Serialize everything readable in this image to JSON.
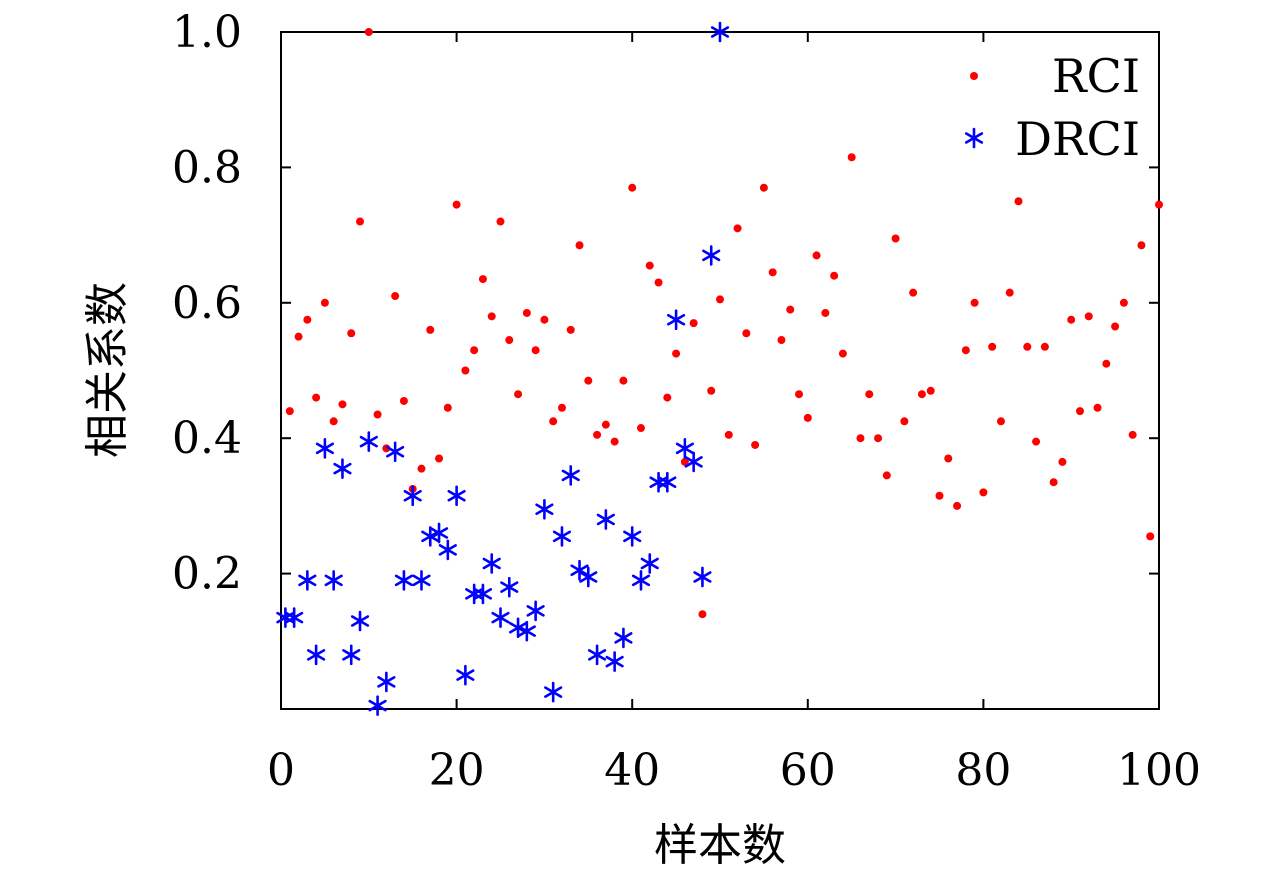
{
  "chart_data": {
    "type": "scatter",
    "xlabel": "样本数",
    "ylabel": "相关系数",
    "xlim": [
      0,
      100
    ],
    "ylim": [
      0,
      1.0
    ],
    "x_tick_labels": [
      "0",
      "20",
      "40",
      "60",
      "80",
      "100"
    ],
    "y_tick_labels": [
      "0.2",
      "0.4",
      "0.6",
      "0.8",
      "1.0"
    ],
    "grid": false,
    "legend_position": "top-right",
    "series": [
      {
        "name": "RCI",
        "marker": "dot",
        "color": "#ff0000",
        "points": [
          [
            1,
            0.44
          ],
          [
            2,
            0.55
          ],
          [
            3,
            0.575
          ],
          [
            4,
            0.46
          ],
          [
            5,
            0.6
          ],
          [
            6,
            0.425
          ],
          [
            7,
            0.45
          ],
          [
            8,
            0.555
          ],
          [
            9,
            0.72
          ],
          [
            10,
            1.0
          ],
          [
            11,
            0.435
          ],
          [
            12,
            0.385
          ],
          [
            13,
            0.61
          ],
          [
            14,
            0.455
          ],
          [
            15,
            0.325
          ],
          [
            16,
            0.355
          ],
          [
            17,
            0.56
          ],
          [
            18,
            0.37
          ],
          [
            19,
            0.445
          ],
          [
            20,
            0.745
          ],
          [
            21,
            0.5
          ],
          [
            22,
            0.53
          ],
          [
            23,
            0.635
          ],
          [
            24,
            0.58
          ],
          [
            25,
            0.72
          ],
          [
            26,
            0.545
          ],
          [
            27,
            0.465
          ],
          [
            28,
            0.585
          ],
          [
            29,
            0.53
          ],
          [
            30,
            0.575
          ],
          [
            31,
            0.425
          ],
          [
            32,
            0.445
          ],
          [
            33,
            0.56
          ],
          [
            34,
            0.685
          ],
          [
            35,
            0.485
          ],
          [
            36,
            0.405
          ],
          [
            37,
            0.42
          ],
          [
            38,
            0.395
          ],
          [
            39,
            0.485
          ],
          [
            40,
            0.77
          ],
          [
            41,
            0.415
          ],
          [
            42,
            0.655
          ],
          [
            43,
            0.63
          ],
          [
            44,
            0.46
          ],
          [
            45,
            0.525
          ],
          [
            46,
            0.365
          ],
          [
            47,
            0.57
          ],
          [
            48,
            0.14
          ],
          [
            49,
            0.47
          ],
          [
            50,
            0.605
          ],
          [
            51,
            0.405
          ],
          [
            52,
            0.71
          ],
          [
            53,
            0.555
          ],
          [
            54,
            0.39
          ],
          [
            55,
            0.77
          ],
          [
            56,
            0.645
          ],
          [
            57,
            0.545
          ],
          [
            58,
            0.59
          ],
          [
            59,
            0.465
          ],
          [
            60,
            0.43
          ],
          [
            61,
            0.67
          ],
          [
            62,
            0.585
          ],
          [
            63,
            0.64
          ],
          [
            64,
            0.525
          ],
          [
            65,
            0.815
          ],
          [
            66,
            0.4
          ],
          [
            67,
            0.465
          ],
          [
            68,
            0.4
          ],
          [
            69,
            0.345
          ],
          [
            70,
            0.695
          ],
          [
            71,
            0.425
          ],
          [
            72,
            0.615
          ],
          [
            73,
            0.465
          ],
          [
            74,
            0.47
          ],
          [
            75,
            0.315
          ],
          [
            76,
            0.37
          ],
          [
            77,
            0.3
          ],
          [
            78,
            0.53
          ],
          [
            79,
            0.6
          ],
          [
            80,
            0.32
          ],
          [
            81,
            0.535
          ],
          [
            82,
            0.425
          ],
          [
            83,
            0.615
          ],
          [
            84,
            0.75
          ],
          [
            85,
            0.535
          ],
          [
            86,
            0.395
          ],
          [
            87,
            0.535
          ],
          [
            88,
            0.335
          ],
          [
            89,
            0.365
          ],
          [
            90,
            0.575
          ],
          [
            91,
            0.44
          ],
          [
            92,
            0.58
          ],
          [
            93,
            0.445
          ],
          [
            94,
            0.51
          ],
          [
            95,
            0.565
          ],
          [
            96,
            0.6
          ],
          [
            97,
            0.405
          ],
          [
            98,
            0.685
          ],
          [
            99,
            0.255
          ],
          [
            100,
            0.745
          ]
        ]
      },
      {
        "name": "DRCI",
        "marker": "asterisk",
        "color": "#0000ff",
        "points": [
          [
            0.5,
            0.135
          ],
          [
            1.5,
            0.135
          ],
          [
            3,
            0.19
          ],
          [
            4,
            0.08
          ],
          [
            5,
            0.385
          ],
          [
            6,
            0.19
          ],
          [
            7,
            0.355
          ],
          [
            8,
            0.08
          ],
          [
            9,
            0.13
          ],
          [
            10,
            0.395
          ],
          [
            11,
            0.005
          ],
          [
            12,
            0.04
          ],
          [
            13,
            0.38
          ],
          [
            14,
            0.19
          ],
          [
            15,
            0.315
          ],
          [
            16,
            0.19
          ],
          [
            17,
            0.255
          ],
          [
            18,
            0.26
          ],
          [
            19,
            0.235
          ],
          [
            20,
            0.315
          ],
          [
            21,
            0.05
          ],
          [
            22,
            0.17
          ],
          [
            23,
            0.17
          ],
          [
            24,
            0.215
          ],
          [
            25,
            0.135
          ],
          [
            26,
            0.18
          ],
          [
            27,
            0.12
          ],
          [
            28,
            0.115
          ],
          [
            29,
            0.145
          ],
          [
            30,
            0.295
          ],
          [
            31,
            0.025
          ],
          [
            32,
            0.255
          ],
          [
            33,
            0.345
          ],
          [
            34,
            0.205
          ],
          [
            35,
            0.195
          ],
          [
            36,
            0.08
          ],
          [
            37,
            0.28
          ],
          [
            38,
            0.07
          ],
          [
            39,
            0.105
          ],
          [
            40,
            0.255
          ],
          [
            41,
            0.19
          ],
          [
            42,
            0.215
          ],
          [
            43,
            0.335
          ],
          [
            44,
            0.335
          ],
          [
            45,
            0.575
          ],
          [
            46,
            0.385
          ],
          [
            47,
            0.365
          ],
          [
            48,
            0.195
          ],
          [
            49,
            0.67
          ],
          [
            50,
            1.0
          ]
        ]
      }
    ]
  }
}
